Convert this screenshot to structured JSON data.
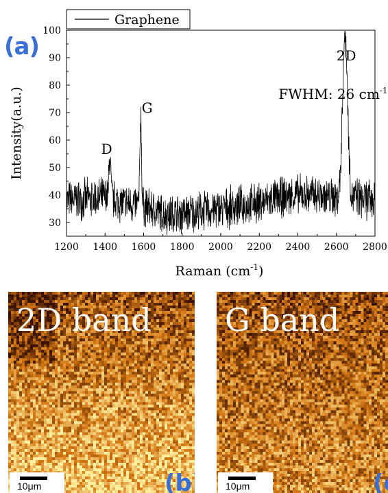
{
  "panel_a": {
    "label": "(a)"
  },
  "chart_data": {
    "type": "line",
    "title": "",
    "xlabel": "Raman (cm",
    "xlabel_sup": "-1",
    "xlabel_tail": ")",
    "ylabel": "Intensity(a.u.)",
    "xlim": [
      1200,
      2800
    ],
    "ylim": [
      25,
      100
    ],
    "xticks": [
      1200,
      1400,
      1600,
      1800,
      2000,
      2200,
      2400,
      2600,
      2800
    ],
    "yticks": [
      30,
      40,
      50,
      60,
      70,
      80,
      90,
      100
    ],
    "legend": {
      "entries": [
        "Graphene"
      ],
      "position": "top-left"
    },
    "series": [
      {
        "name": "Graphene",
        "color": "#000000",
        "baseline": [
          [
            1200,
            38
          ],
          [
            1300,
            38.5
          ],
          [
            1400,
            39
          ],
          [
            1500,
            37
          ],
          [
            1600,
            36
          ],
          [
            1700,
            33
          ],
          [
            1800,
            33
          ],
          [
            1900,
            34
          ],
          [
            2000,
            35
          ],
          [
            2100,
            36
          ],
          [
            2200,
            37
          ],
          [
            2300,
            39
          ],
          [
            2400,
            40
          ],
          [
            2500,
            40
          ],
          [
            2560,
            39
          ],
          [
            2700,
            39
          ],
          [
            2800,
            38
          ]
        ],
        "peaks": [
          {
            "label": "D",
            "x": 1425,
            "y": 54
          },
          {
            "label": "G",
            "x": 1585,
            "y": 69
          },
          {
            "label": "2D",
            "x": 2645,
            "y": 99
          }
        ],
        "noise_amplitude": 7
      }
    ],
    "annotations": [
      {
        "text": "D",
        "x": 1380,
        "y": 55
      },
      {
        "text": "G",
        "x": 1590,
        "y": 70
      },
      {
        "text": "2D",
        "x": 2600,
        "y": 89
      },
      {
        "text": "FWHM: 26 cm",
        "sup": "-1",
        "x": 2300,
        "y": 75
      }
    ]
  },
  "maps": [
    {
      "title": "2D band",
      "scale_label": "10μm",
      "letter": "(b)",
      "seed": 11
    },
    {
      "title": "G band",
      "scale_label": "10μm",
      "letter": "(c",
      "seed": 29
    }
  ],
  "colors": {
    "panel_label": "#3b6fd8",
    "map_low": "#3a1200",
    "map_high": "#fff0a0"
  }
}
